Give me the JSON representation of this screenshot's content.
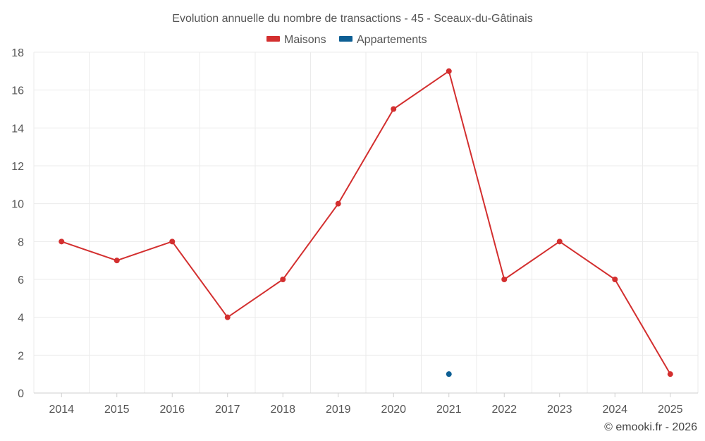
{
  "chart_data": {
    "type": "line",
    "title": "Evolution annuelle du nombre de transactions - 45 - Sceaux-du-Gâtinais",
    "categories": [
      "2014",
      "2015",
      "2016",
      "2017",
      "2018",
      "2019",
      "2020",
      "2021",
      "2022",
      "2023",
      "2024",
      "2025"
    ],
    "ylim": [
      0,
      18
    ],
    "yticks": [
      0,
      2,
      4,
      6,
      8,
      10,
      12,
      14,
      16,
      18
    ],
    "grid": true,
    "legend_position": "top-center",
    "series": [
      {
        "name": "Maisons",
        "color": "#d32f2f",
        "values": [
          8,
          7,
          8,
          4,
          6,
          10,
          15,
          17,
          6,
          8,
          6,
          1
        ]
      },
      {
        "name": "Appartements",
        "color": "#0d5f94",
        "values": [
          null,
          null,
          null,
          null,
          null,
          null,
          null,
          1,
          null,
          null,
          null,
          null
        ]
      }
    ],
    "footer": "© emooki.fr - 2026"
  }
}
